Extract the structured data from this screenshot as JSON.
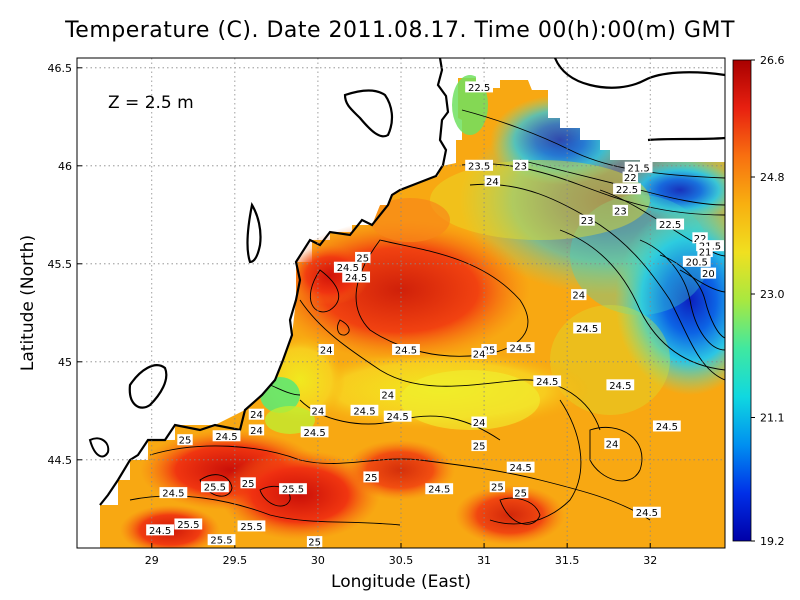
{
  "title": "Temperature (C). Date 2011.08.17. Time 00(h):00(m) GMT",
  "depth_label": "Z = 2.5 m",
  "chart_data": {
    "type": "heatmap",
    "title": "Temperature (C). Date 2011.08.17. Time 00(h):00(m) GMT",
    "xlabel": "Longitude (East)",
    "ylabel": "Latitude (North)",
    "xlim": [
      28.55,
      32.45
    ],
    "ylim": [
      44.05,
      46.55
    ],
    "xticks": [
      "29",
      "29.5",
      "30",
      "30.5",
      "31",
      "31.5",
      "32"
    ],
    "xtick_values": [
      29,
      29.5,
      30,
      30.5,
      31,
      31.5,
      32
    ],
    "yticks": [
      "46.5",
      "46",
      "45.5",
      "45",
      "44.5"
    ],
    "ytick_values": [
      46.5,
      46,
      45.5,
      45,
      44.5
    ],
    "grid": true,
    "colorbar": {
      "min": 19.2,
      "max": 26.6,
      "ticks": [
        "26.6",
        "24.8",
        "23.0",
        "21.1",
        "19.2"
      ],
      "tick_values": [
        26.6,
        24.8,
        23.0,
        21.1,
        19.2
      ],
      "colors": [
        "#0000a8",
        "#0030e8",
        "#0090f0",
        "#10d8e0",
        "#40e8a0",
        "#a8e840",
        "#f0e020",
        "#f8b010",
        "#f87010",
        "#e82010",
        "#a80000"
      ]
    },
    "contour_labels": [
      {
        "text": "22.5",
        "lon": 30.97,
        "lat": 46.4
      },
      {
        "text": "23.5",
        "lon": 30.97,
        "lat": 46.0
      },
      {
        "text": "23",
        "lon": 31.22,
        "lat": 46.0
      },
      {
        "text": "24",
        "lon": 31.05,
        "lat": 45.92
      },
      {
        "text": "21.5",
        "lon": 31.93,
        "lat": 45.99
      },
      {
        "text": "22",
        "lon": 31.88,
        "lat": 45.94
      },
      {
        "text": "22.5",
        "lon": 31.86,
        "lat": 45.88
      },
      {
        "text": "23",
        "lon": 31.82,
        "lat": 45.77
      },
      {
        "text": "23",
        "lon": 31.62,
        "lat": 45.72
      },
      {
        "text": "22.5",
        "lon": 32.12,
        "lat": 45.7
      },
      {
        "text": "22",
        "lon": 32.3,
        "lat": 45.63
      },
      {
        "text": "21.5",
        "lon": 32.36,
        "lat": 45.59
      },
      {
        "text": "21",
        "lon": 32.33,
        "lat": 45.56
      },
      {
        "text": "20.5",
        "lon": 32.28,
        "lat": 45.51
      },
      {
        "text": "20",
        "lon": 32.35,
        "lat": 45.45
      },
      {
        "text": "25",
        "lon": 30.27,
        "lat": 45.53
      },
      {
        "text": "24.5",
        "lon": 30.18,
        "lat": 45.48
      },
      {
        "text": "24.5",
        "lon": 30.23,
        "lat": 45.43
      },
      {
        "text": "24",
        "lon": 31.57,
        "lat": 45.34
      },
      {
        "text": "24.5",
        "lon": 31.62,
        "lat": 45.17
      },
      {
        "text": "24",
        "lon": 30.05,
        "lat": 45.06
      },
      {
        "text": "24.5",
        "lon": 30.53,
        "lat": 45.06
      },
      {
        "text": "25",
        "lon": 31.03,
        "lat": 45.06
      },
      {
        "text": "24",
        "lon": 30.97,
        "lat": 45.04
      },
      {
        "text": "24.5",
        "lon": 31.22,
        "lat": 45.07
      },
      {
        "text": "24.5",
        "lon": 31.38,
        "lat": 44.9
      },
      {
        "text": "24.5",
        "lon": 31.82,
        "lat": 44.88
      },
      {
        "text": "24",
        "lon": 30.42,
        "lat": 44.83
      },
      {
        "text": "24",
        "lon": 30.0,
        "lat": 44.75
      },
      {
        "text": "24.5",
        "lon": 30.28,
        "lat": 44.75
      },
      {
        "text": "24.5",
        "lon": 30.48,
        "lat": 44.72
      },
      {
        "text": "24",
        "lon": 29.63,
        "lat": 44.73
      },
      {
        "text": "24",
        "lon": 29.63,
        "lat": 44.65
      },
      {
        "text": "24.5",
        "lon": 29.98,
        "lat": 44.64
      },
      {
        "text": "24",
        "lon": 30.97,
        "lat": 44.69
      },
      {
        "text": "24.5",
        "lon": 32.1,
        "lat": 44.67
      },
      {
        "text": "24.5",
        "lon": 29.45,
        "lat": 44.62
      },
      {
        "text": "24",
        "lon": 31.77,
        "lat": 44.58
      },
      {
        "text": "25",
        "lon": 29.2,
        "lat": 44.6
      },
      {
        "text": "25",
        "lon": 30.97,
        "lat": 44.57
      },
      {
        "text": "24.5",
        "lon": 31.22,
        "lat": 44.46
      },
      {
        "text": "25",
        "lon": 30.32,
        "lat": 44.41
      },
      {
        "text": "25",
        "lon": 29.58,
        "lat": 44.38
      },
      {
        "text": "25.5",
        "lon": 29.38,
        "lat": 44.36
      },
      {
        "text": "25.5",
        "lon": 29.85,
        "lat": 44.35
      },
      {
        "text": "24.5",
        "lon": 30.73,
        "lat": 44.35
      },
      {
        "text": "25",
        "lon": 31.08,
        "lat": 44.36
      },
      {
        "text": "25",
        "lon": 31.22,
        "lat": 44.33
      },
      {
        "text": "24.5",
        "lon": 29.13,
        "lat": 44.33
      },
      {
        "text": "24.5",
        "lon": 31.98,
        "lat": 44.23
      },
      {
        "text": "25.5",
        "lon": 29.22,
        "lat": 44.17
      },
      {
        "text": "25.5",
        "lon": 29.6,
        "lat": 44.16
      },
      {
        "text": "24.5",
        "lon": 29.05,
        "lat": 44.14
      },
      {
        "text": "25.5",
        "lon": 29.42,
        "lat": 44.09
      },
      {
        "text": "25",
        "lon": 29.98,
        "lat": 44.08
      }
    ]
  }
}
